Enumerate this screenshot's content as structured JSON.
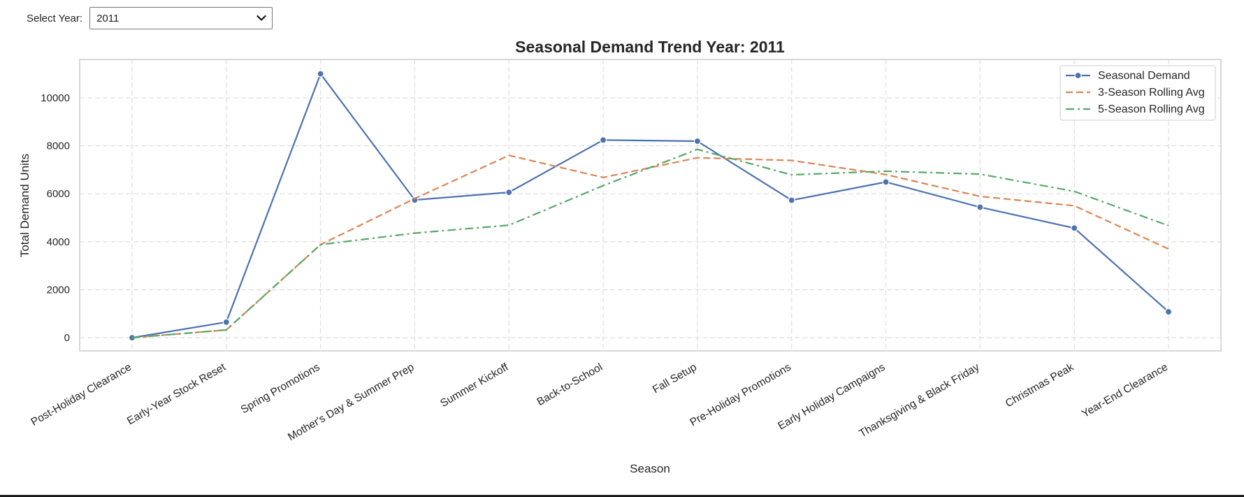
{
  "controls": {
    "year_label": "Select Year:",
    "year_value": "2011",
    "dropdown_icon": "chevron-down-icon"
  },
  "chart_data": {
    "type": "line",
    "title": "Seasonal Demand Trend Year: 2011",
    "xlabel": "Season",
    "ylabel": "Total Demand Units",
    "ylim": [
      -550,
      11600
    ],
    "yticks": [
      0,
      2000,
      4000,
      6000,
      8000,
      10000
    ],
    "grid": true,
    "legend_position": "top-right",
    "categories": [
      "Post-Holiday Clearance",
      "Early-Year Stock Reset",
      "Spring Promotions",
      "Mother's Day & Summer Prep",
      "Summer Kickoff",
      "Back-to-School",
      "Fall Setup",
      "Pre-Holiday Promotions",
      "Early Holiday Campaigns",
      "Thanksgiving & Black Friday",
      "Christmas Peak",
      "Year-End Clearance"
    ],
    "series": [
      {
        "name": "Seasonal Demand",
        "color": "#4c72b0",
        "style": "solid",
        "marker": "circle",
        "values": [
          0,
          650,
          11000,
          5740,
          6060,
          8240,
          8190,
          5730,
          6490,
          5440,
          4570,
          1080
        ]
      },
      {
        "name": "3-Season Rolling Avg",
        "color": "#dd8452",
        "style": "dashed",
        "marker": "none",
        "values": [
          0,
          325,
          3880,
          5800,
          7600,
          6680,
          7500,
          7390,
          6800,
          5890,
          5500,
          3700
        ]
      },
      {
        "name": "5-Season Rolling Avg",
        "color": "#55a868",
        "style": "dashdot",
        "marker": "none",
        "values": [
          0,
          325,
          3880,
          4360,
          4690,
          6340,
          7850,
          6790,
          6940,
          6820,
          6100,
          4670
        ]
      }
    ]
  }
}
